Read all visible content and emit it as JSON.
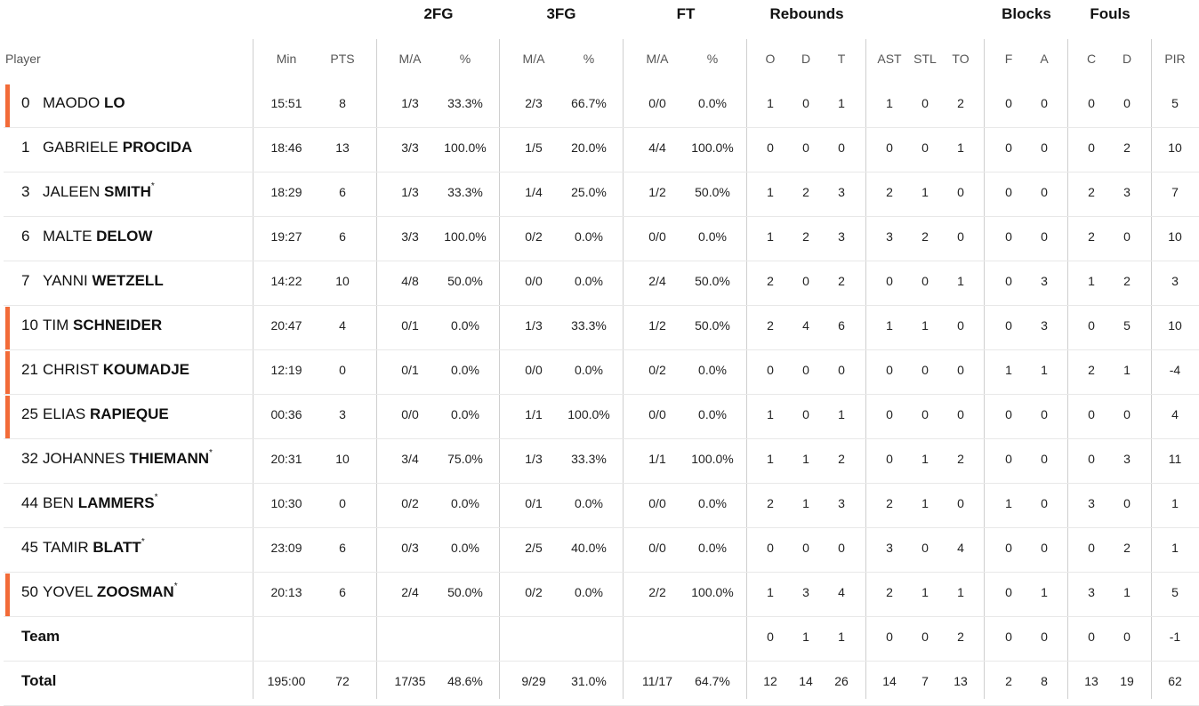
{
  "groups": {
    "fg2": "2FG",
    "fg3": "3FG",
    "ft": "FT",
    "rebounds": "Rebounds",
    "blocks": "Blocks",
    "fouls": "Fouls"
  },
  "columns": {
    "player": "Player",
    "min": "Min",
    "pts": "PTS",
    "fg2_ma": "M/A",
    "fg2_pct": "%",
    "fg3_ma": "M/A",
    "fg3_pct": "%",
    "ft_ma": "M/A",
    "ft_pct": "%",
    "reb_o": "O",
    "reb_d": "D",
    "reb_t": "T",
    "ast": "AST",
    "stl": "STL",
    "to": "TO",
    "blk_f": "F",
    "blk_a": "A",
    "foul_c": "C",
    "foul_d": "D",
    "pir": "PIR"
  },
  "theme": {
    "starter_mark_color": "#f26b38"
  },
  "players": [
    {
      "num": "0",
      "first": "MAODO",
      "last": "LO",
      "star": "",
      "starter": true,
      "min": "15:51",
      "pts": "8",
      "fg2_ma": "1/3",
      "fg2_pct": "33.3%",
      "fg3_ma": "2/3",
      "fg3_pct": "66.7%",
      "ft_ma": "0/0",
      "ft_pct": "0.0%",
      "reb_o": "1",
      "reb_d": "0",
      "reb_t": "1",
      "ast": "1",
      "stl": "0",
      "to": "2",
      "blk_f": "0",
      "blk_a": "0",
      "foul_c": "0",
      "foul_d": "0",
      "pir": "5"
    },
    {
      "num": "1",
      "first": "GABRIELE",
      "last": "PROCIDA",
      "star": "",
      "starter": false,
      "min": "18:46",
      "pts": "13",
      "fg2_ma": "3/3",
      "fg2_pct": "100.0%",
      "fg3_ma": "1/5",
      "fg3_pct": "20.0%",
      "ft_ma": "4/4",
      "ft_pct": "100.0%",
      "reb_o": "0",
      "reb_d": "0",
      "reb_t": "0",
      "ast": "0",
      "stl": "0",
      "to": "1",
      "blk_f": "0",
      "blk_a": "0",
      "foul_c": "0",
      "foul_d": "2",
      "pir": "10"
    },
    {
      "num": "3",
      "first": "JALEEN",
      "last": "SMITH",
      "star": "*",
      "starter": false,
      "min": "18:29",
      "pts": "6",
      "fg2_ma": "1/3",
      "fg2_pct": "33.3%",
      "fg3_ma": "1/4",
      "fg3_pct": "25.0%",
      "ft_ma": "1/2",
      "ft_pct": "50.0%",
      "reb_o": "1",
      "reb_d": "2",
      "reb_t": "3",
      "ast": "2",
      "stl": "1",
      "to": "0",
      "blk_f": "0",
      "blk_a": "0",
      "foul_c": "2",
      "foul_d": "3",
      "pir": "7"
    },
    {
      "num": "6",
      "first": "MALTE",
      "last": "DELOW",
      "star": "",
      "starter": false,
      "min": "19:27",
      "pts": "6",
      "fg2_ma": "3/3",
      "fg2_pct": "100.0%",
      "fg3_ma": "0/2",
      "fg3_pct": "0.0%",
      "ft_ma": "0/0",
      "ft_pct": "0.0%",
      "reb_o": "1",
      "reb_d": "2",
      "reb_t": "3",
      "ast": "3",
      "stl": "2",
      "to": "0",
      "blk_f": "0",
      "blk_a": "0",
      "foul_c": "2",
      "foul_d": "0",
      "pir": "10"
    },
    {
      "num": "7",
      "first": "YANNI",
      "last": "WETZELL",
      "star": "",
      "starter": false,
      "min": "14:22",
      "pts": "10",
      "fg2_ma": "4/8",
      "fg2_pct": "50.0%",
      "fg3_ma": "0/0",
      "fg3_pct": "0.0%",
      "ft_ma": "2/4",
      "ft_pct": "50.0%",
      "reb_o": "2",
      "reb_d": "0",
      "reb_t": "2",
      "ast": "0",
      "stl": "0",
      "to": "1",
      "blk_f": "0",
      "blk_a": "3",
      "foul_c": "1",
      "foul_d": "2",
      "pir": "3"
    },
    {
      "num": "10",
      "first": "TIM",
      "last": "SCHNEIDER",
      "star": "",
      "starter": true,
      "min": "20:47",
      "pts": "4",
      "fg2_ma": "0/1",
      "fg2_pct": "0.0%",
      "fg3_ma": "1/3",
      "fg3_pct": "33.3%",
      "ft_ma": "1/2",
      "ft_pct": "50.0%",
      "reb_o": "2",
      "reb_d": "4",
      "reb_t": "6",
      "ast": "1",
      "stl": "1",
      "to": "0",
      "blk_f": "0",
      "blk_a": "3",
      "foul_c": "0",
      "foul_d": "5",
      "pir": "10"
    },
    {
      "num": "21",
      "first": "CHRIST",
      "last": "KOUMADJE",
      "star": "",
      "starter": true,
      "min": "12:19",
      "pts": "0",
      "fg2_ma": "0/1",
      "fg2_pct": "0.0%",
      "fg3_ma": "0/0",
      "fg3_pct": "0.0%",
      "ft_ma": "0/2",
      "ft_pct": "0.0%",
      "reb_o": "0",
      "reb_d": "0",
      "reb_t": "0",
      "ast": "0",
      "stl": "0",
      "to": "0",
      "blk_f": "1",
      "blk_a": "1",
      "foul_c": "2",
      "foul_d": "1",
      "pir": "-4"
    },
    {
      "num": "25",
      "first": "ELIAS",
      "last": "RAPIEQUE",
      "star": "",
      "starter": true,
      "min": "00:36",
      "pts": "3",
      "fg2_ma": "0/0",
      "fg2_pct": "0.0%",
      "fg3_ma": "1/1",
      "fg3_pct": "100.0%",
      "ft_ma": "0/0",
      "ft_pct": "0.0%",
      "reb_o": "1",
      "reb_d": "0",
      "reb_t": "1",
      "ast": "0",
      "stl": "0",
      "to": "0",
      "blk_f": "0",
      "blk_a": "0",
      "foul_c": "0",
      "foul_d": "0",
      "pir": "4"
    },
    {
      "num": "32",
      "first": "JOHANNES",
      "last": "THIEMANN",
      "star": "*",
      "starter": false,
      "min": "20:31",
      "pts": "10",
      "fg2_ma": "3/4",
      "fg2_pct": "75.0%",
      "fg3_ma": "1/3",
      "fg3_pct": "33.3%",
      "ft_ma": "1/1",
      "ft_pct": "100.0%",
      "reb_o": "1",
      "reb_d": "1",
      "reb_t": "2",
      "ast": "0",
      "stl": "1",
      "to": "2",
      "blk_f": "0",
      "blk_a": "0",
      "foul_c": "0",
      "foul_d": "3",
      "pir": "11"
    },
    {
      "num": "44",
      "first": "BEN",
      "last": "LAMMERS",
      "star": "*",
      "starter": false,
      "min": "10:30",
      "pts": "0",
      "fg2_ma": "0/2",
      "fg2_pct": "0.0%",
      "fg3_ma": "0/1",
      "fg3_pct": "0.0%",
      "ft_ma": "0/0",
      "ft_pct": "0.0%",
      "reb_o": "2",
      "reb_d": "1",
      "reb_t": "3",
      "ast": "2",
      "stl": "1",
      "to": "0",
      "blk_f": "1",
      "blk_a": "0",
      "foul_c": "3",
      "foul_d": "0",
      "pir": "1"
    },
    {
      "num": "45",
      "first": "TAMIR",
      "last": "BLATT",
      "star": "*",
      "starter": false,
      "min": "23:09",
      "pts": "6",
      "fg2_ma": "0/3",
      "fg2_pct": "0.0%",
      "fg3_ma": "2/5",
      "fg3_pct": "40.0%",
      "ft_ma": "0/0",
      "ft_pct": "0.0%",
      "reb_o": "0",
      "reb_d": "0",
      "reb_t": "0",
      "ast": "3",
      "stl": "0",
      "to": "4",
      "blk_f": "0",
      "blk_a": "0",
      "foul_c": "0",
      "foul_d": "2",
      "pir": "1"
    },
    {
      "num": "50",
      "first": "YOVEL",
      "last": "ZOOSMAN",
      "star": "*",
      "starter": true,
      "min": "20:13",
      "pts": "6",
      "fg2_ma": "2/4",
      "fg2_pct": "50.0%",
      "fg3_ma": "0/2",
      "fg3_pct": "0.0%",
      "ft_ma": "2/2",
      "ft_pct": "100.0%",
      "reb_o": "1",
      "reb_d": "3",
      "reb_t": "4",
      "ast": "2",
      "stl": "1",
      "to": "1",
      "blk_f": "0",
      "blk_a": "1",
      "foul_c": "3",
      "foul_d": "1",
      "pir": "5"
    }
  ],
  "team": {
    "label": "Team",
    "reb_o": "0",
    "reb_d": "1",
    "reb_t": "1",
    "ast": "0",
    "stl": "0",
    "to": "2",
    "blk_f": "0",
    "blk_a": "0",
    "foul_c": "0",
    "foul_d": "0",
    "pir": "-1"
  },
  "total": {
    "label": "Total",
    "min": "195:00",
    "pts": "72",
    "fg2_ma": "17/35",
    "fg2_pct": "48.6%",
    "fg3_ma": "9/29",
    "fg3_pct": "31.0%",
    "ft_ma": "11/17",
    "ft_pct": "64.7%",
    "reb_o": "12",
    "reb_d": "14",
    "reb_t": "26",
    "ast": "14",
    "stl": "7",
    "to": "13",
    "blk_f": "2",
    "blk_a": "8",
    "foul_c": "13",
    "foul_d": "19",
    "pir": "62"
  }
}
